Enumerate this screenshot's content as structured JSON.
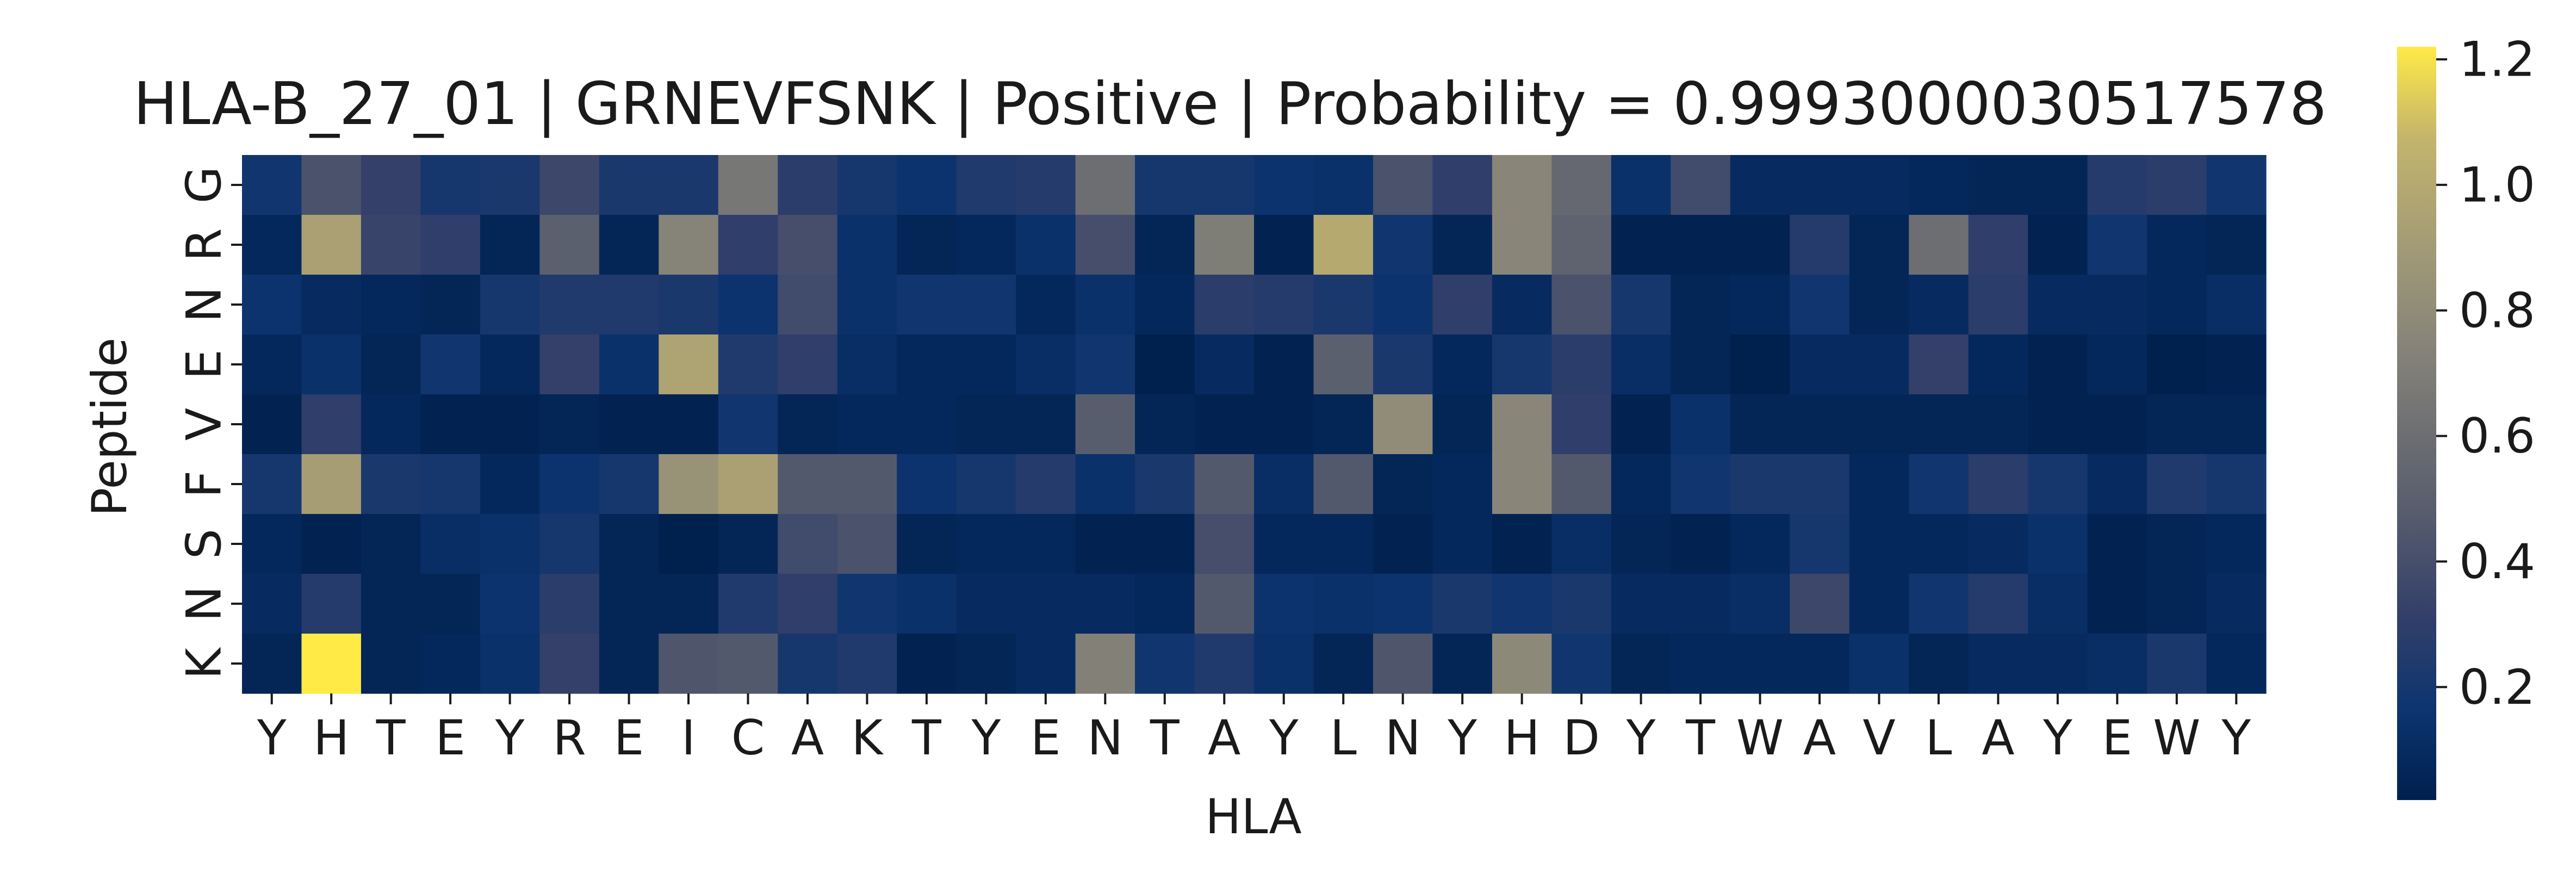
{
  "chart_data": {
    "type": "heatmap",
    "title": "HLA-B_27_01 | GRNEVFSNK | Positive | Probability = 0.9993000030517578",
    "xlabel": "HLA",
    "ylabel": "Peptide",
    "x_labels": [
      "Y",
      "H",
      "T",
      "E",
      "Y",
      "R",
      "E",
      "I",
      "C",
      "A",
      "K",
      "T",
      "Y",
      "E",
      "N",
      "T",
      "A",
      "Y",
      "L",
      "N",
      "Y",
      "H",
      "D",
      "Y",
      "T",
      "W",
      "A",
      "V",
      "L",
      "A",
      "Y",
      "E",
      "W",
      "Y"
    ],
    "y_labels": [
      "G",
      "R",
      "N",
      "E",
      "V",
      "F",
      "S",
      "N",
      "K"
    ],
    "colorbar": {
      "range": [
        0.02,
        1.22
      ],
      "ticks": [
        0.2,
        0.4,
        0.6,
        0.8,
        1.0,
        1.2
      ],
      "tick_labels": [
        "0.2",
        "0.4",
        "0.6",
        "0.8",
        "1.0",
        "1.2"
      ],
      "colormap": "cividis"
    },
    "values": [
      [
        0.18,
        0.42,
        0.32,
        0.2,
        0.22,
        0.36,
        0.22,
        0.22,
        0.66,
        0.28,
        0.2,
        0.16,
        0.24,
        0.26,
        0.6,
        0.2,
        0.2,
        0.16,
        0.14,
        0.42,
        0.3,
        0.76,
        0.56,
        0.14,
        0.38,
        0.1,
        0.1,
        0.1,
        0.08,
        0.06,
        0.06,
        0.26,
        0.28,
        0.18
      ],
      [
        0.08,
        0.94,
        0.34,
        0.3,
        0.06,
        0.5,
        0.06,
        0.74,
        0.3,
        0.4,
        0.14,
        0.06,
        0.08,
        0.14,
        0.4,
        0.06,
        0.7,
        0.04,
        1.0,
        0.18,
        0.06,
        0.76,
        0.52,
        0.04,
        0.04,
        0.04,
        0.26,
        0.06,
        0.6,
        0.3,
        0.04,
        0.18,
        0.08,
        0.06
      ],
      [
        0.16,
        0.1,
        0.08,
        0.06,
        0.2,
        0.24,
        0.24,
        0.22,
        0.16,
        0.38,
        0.14,
        0.18,
        0.18,
        0.08,
        0.14,
        0.08,
        0.28,
        0.26,
        0.22,
        0.16,
        0.3,
        0.1,
        0.42,
        0.2,
        0.06,
        0.08,
        0.18,
        0.06,
        0.1,
        0.28,
        0.1,
        0.1,
        0.08,
        0.12
      ],
      [
        0.08,
        0.14,
        0.06,
        0.18,
        0.08,
        0.32,
        0.14,
        0.96,
        0.24,
        0.3,
        0.12,
        0.08,
        0.08,
        0.12,
        0.18,
        0.02,
        0.1,
        0.04,
        0.5,
        0.22,
        0.08,
        0.2,
        0.28,
        0.12,
        0.06,
        0.02,
        0.1,
        0.1,
        0.32,
        0.08,
        0.04,
        0.08,
        0.02,
        0.04
      ],
      [
        0.04,
        0.3,
        0.08,
        0.04,
        0.04,
        0.06,
        0.04,
        0.04,
        0.18,
        0.06,
        0.08,
        0.08,
        0.06,
        0.06,
        0.48,
        0.06,
        0.04,
        0.04,
        0.06,
        0.8,
        0.06,
        0.76,
        0.3,
        0.04,
        0.14,
        0.06,
        0.06,
        0.06,
        0.06,
        0.06,
        0.04,
        0.04,
        0.06,
        0.06
      ],
      [
        0.2,
        0.92,
        0.22,
        0.2,
        0.08,
        0.16,
        0.2,
        0.84,
        0.94,
        0.46,
        0.46,
        0.16,
        0.2,
        0.26,
        0.14,
        0.22,
        0.46,
        0.12,
        0.46,
        0.06,
        0.08,
        0.76,
        0.46,
        0.08,
        0.18,
        0.22,
        0.22,
        0.08,
        0.18,
        0.28,
        0.2,
        0.1,
        0.24,
        0.2
      ],
      [
        0.08,
        0.04,
        0.06,
        0.12,
        0.14,
        0.2,
        0.06,
        0.02,
        0.06,
        0.38,
        0.42,
        0.06,
        0.08,
        0.08,
        0.04,
        0.04,
        0.4,
        0.08,
        0.08,
        0.04,
        0.08,
        0.04,
        0.12,
        0.06,
        0.04,
        0.08,
        0.2,
        0.08,
        0.08,
        0.1,
        0.14,
        0.04,
        0.06,
        0.08
      ],
      [
        0.1,
        0.26,
        0.06,
        0.06,
        0.16,
        0.28,
        0.06,
        0.06,
        0.24,
        0.3,
        0.18,
        0.14,
        0.1,
        0.1,
        0.1,
        0.08,
        0.46,
        0.16,
        0.14,
        0.16,
        0.22,
        0.18,
        0.22,
        0.1,
        0.1,
        0.12,
        0.36,
        0.08,
        0.18,
        0.26,
        0.12,
        0.04,
        0.06,
        0.1
      ],
      [
        0.06,
        1.22,
        0.06,
        0.08,
        0.14,
        0.32,
        0.06,
        0.44,
        0.46,
        0.2,
        0.24,
        0.04,
        0.06,
        0.1,
        0.72,
        0.18,
        0.24,
        0.14,
        0.06,
        0.44,
        0.06,
        0.78,
        0.18,
        0.06,
        0.08,
        0.08,
        0.08,
        0.14,
        0.06,
        0.1,
        0.1,
        0.12,
        0.22,
        0.08
      ]
    ]
  }
}
